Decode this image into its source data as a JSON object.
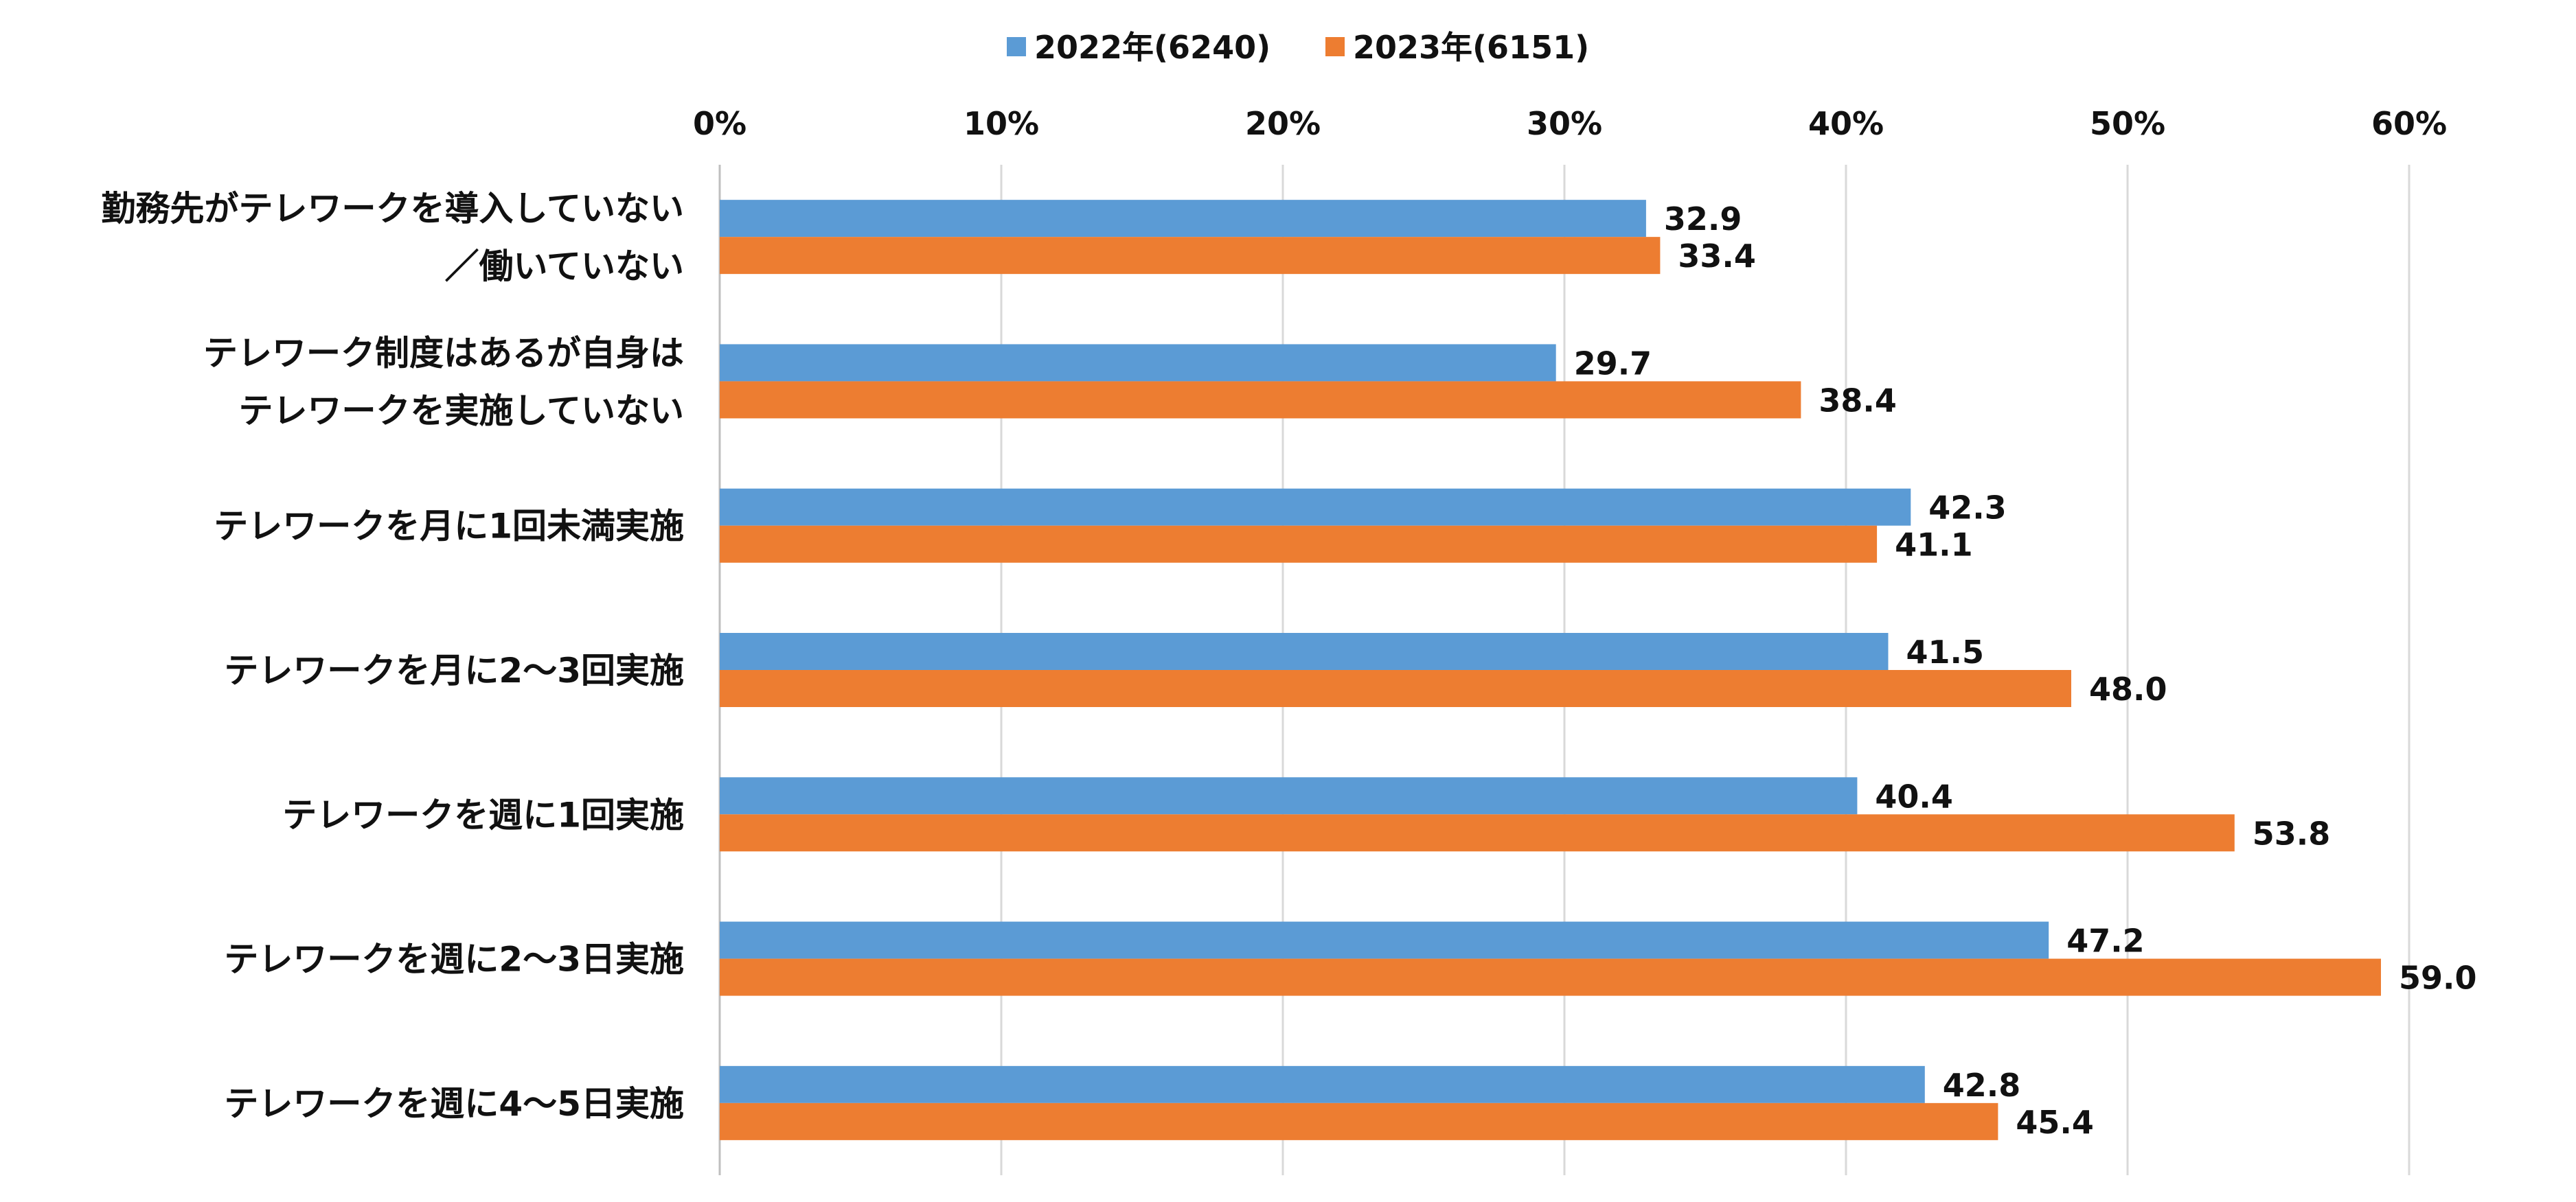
{
  "chart_data": {
    "type": "bar",
    "orientation": "horizontal",
    "x_axis_position": "top",
    "grid": true,
    "legend_position": "top-center",
    "xlim": [
      0,
      60
    ],
    "x_ticks": [
      0,
      10,
      20,
      30,
      40,
      50,
      60
    ],
    "x_tick_labels": [
      "0%",
      "10%",
      "20%",
      "30%",
      "40%",
      "50%",
      "60%"
    ],
    "categories": [
      [
        "勤務先がテレワークを導入していない",
        "／働いていない"
      ],
      [
        "テレワーク制度はあるが自身は",
        "テレワークを実施していない"
      ],
      [
        "テレワークを月に1回未満実施"
      ],
      [
        "テレワークを月に2～3回実施"
      ],
      [
        "テレワークを週に1回実施"
      ],
      [
        "テレワークを週に2～3日実施"
      ],
      [
        "テレワークを週に4～5日実施"
      ]
    ],
    "series": [
      {
        "name": "2022年(6240)",
        "color": "#5B9BD5",
        "values": [
          32.9,
          29.7,
          42.3,
          41.5,
          40.4,
          47.2,
          42.8
        ],
        "labels": [
          "32.9",
          "29.7",
          "42.3",
          "41.5",
          "40.4",
          "47.2",
          "42.8"
        ]
      },
      {
        "name": "2023年(6151)",
        "color": "#ED7D31",
        "values": [
          33.4,
          38.4,
          41.1,
          48.0,
          53.8,
          59.0,
          45.4
        ],
        "labels": [
          "33.4",
          "38.4",
          "41.1",
          "48.0",
          "53.8",
          "59.0",
          "45.4"
        ]
      }
    ],
    "colors": {
      "grid": "#D9D9D9",
      "axis": "#BFBFBF"
    }
  }
}
